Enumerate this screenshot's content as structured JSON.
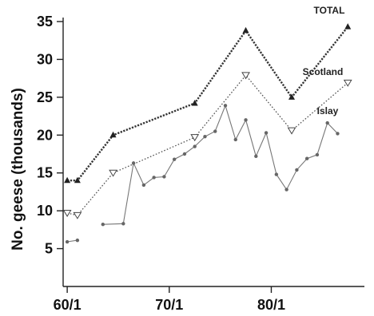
{
  "chart_data": {
    "type": "line",
    "title": "",
    "xlabel": "",
    "ylabel": "No. geese (thousands)",
    "xlim": [
      59.6,
      88.5
    ],
    "ylim": [
      0,
      35
    ],
    "y_ticks": [
      5,
      10,
      15,
      20,
      25,
      30,
      35
    ],
    "x_ticks": [
      {
        "value": 60,
        "label": "60/1"
      },
      {
        "value": 70,
        "label": "70/1"
      },
      {
        "value": 80,
        "label": "80/1"
      }
    ],
    "grid": false,
    "legend": "labels at line ends",
    "series": [
      {
        "name": "TOTAL",
        "marker": "filled-triangle",
        "style": "dotted",
        "color": "#333333",
        "points": [
          [
            60,
            14
          ],
          [
            61,
            14
          ],
          [
            64.5,
            20
          ],
          [
            72.5,
            24.2
          ],
          [
            77.5,
            33.8
          ],
          [
            82,
            25
          ],
          [
            87.5,
            34.3
          ]
        ]
      },
      {
        "name": "Scotland",
        "marker": "open-triangle-down",
        "style": "dotted",
        "color": "#555555",
        "points": [
          [
            60,
            9.7
          ],
          [
            61,
            9.4
          ],
          [
            64.5,
            15
          ],
          [
            72.5,
            19.7
          ],
          [
            77.5,
            27.9
          ],
          [
            82,
            20.6
          ],
          [
            87.5,
            26.9
          ]
        ]
      },
      {
        "name": "Islay",
        "marker": "dot",
        "style": "solid",
        "color": "#777777",
        "segments": [
          [
            [
              60,
              5.9
            ],
            [
              61,
              6.1
            ]
          ],
          [
            [
              63.5,
              8.2
            ],
            [
              65.5,
              8.3
            ],
            [
              66.5,
              16.3
            ],
            [
              67.5,
              13.4
            ],
            [
              68.5,
              14.4
            ],
            [
              69.5,
              14.5
            ],
            [
              70.5,
              16.8
            ],
            [
              71.5,
              17.5
            ],
            [
              72.5,
              18.5
            ],
            [
              73.5,
              19.8
            ],
            [
              74.5,
              20.5
            ],
            [
              75.5,
              23.9
            ],
            [
              76.5,
              19.4
            ],
            [
              77.5,
              22
            ],
            [
              78.5,
              17.2
            ],
            [
              79.5,
              20.3
            ],
            [
              80.5,
              14.8
            ],
            [
              81.5,
              12.8
            ],
            [
              82.5,
              15.4
            ],
            [
              83.5,
              16.9
            ],
            [
              84.5,
              17.4
            ],
            [
              85.5,
              21.6
            ],
            [
              86.5,
              20.2
            ]
          ]
        ]
      }
    ]
  }
}
